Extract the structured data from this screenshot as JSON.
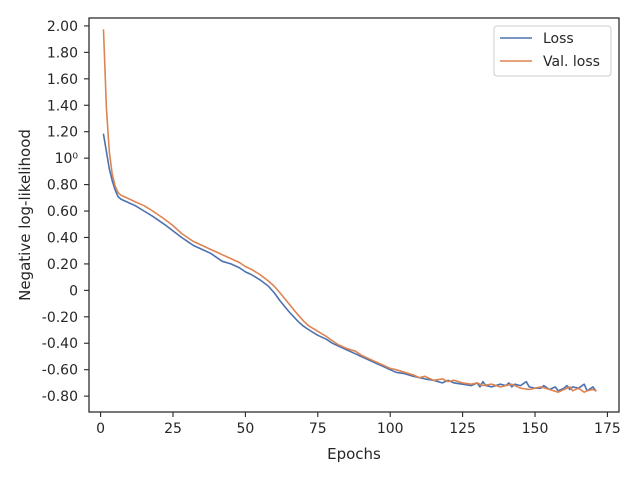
{
  "chart_data": {
    "type": "line",
    "xlabel": "Epochs",
    "ylabel": "Negative log-likelihood",
    "xlim": [
      -4,
      179
    ],
    "ylim": [
      -0.92,
      2.06
    ],
    "x_ticks": [
      0,
      25,
      50,
      75,
      100,
      125,
      150,
      175
    ],
    "x_tick_labels": [
      "0",
      "25",
      "50",
      "75",
      "100",
      "125",
      "150",
      "175"
    ],
    "y_ticks": [
      2.0,
      1.8,
      1.6,
      1.4,
      1.2,
      1.0,
      0.8,
      0.6,
      0.4,
      0.2,
      0.0,
      -0.2,
      -0.4,
      -0.6,
      -0.8
    ],
    "y_tick_labels": [
      "2.00",
      "1.80",
      "1.60",
      "1.40",
      "1.20",
      "10⁰",
      "0.80",
      "0.60",
      "0.40",
      "0.20",
      "0",
      "-0.20",
      "-0.40",
      "-0.60",
      "-0.80"
    ],
    "grid": false,
    "legend_position": "top-right",
    "series": [
      {
        "name": "Loss",
        "color": "#4c72b0",
        "x": [
          1,
          2,
          3,
          4,
          5,
          6,
          7,
          8,
          10,
          12,
          15,
          18,
          20,
          22,
          25,
          28,
          30,
          32,
          35,
          38,
          40,
          42,
          45,
          48,
          50,
          52,
          55,
          58,
          60,
          62,
          65,
          68,
          70,
          72,
          75,
          78,
          80,
          82,
          85,
          88,
          90,
          92,
          95,
          98,
          100,
          102,
          105,
          108,
          110,
          112,
          115,
          118,
          120,
          122,
          125,
          128,
          130,
          131,
          132,
          133,
          135,
          138,
          140,
          141,
          142,
          143,
          145,
          147,
          148,
          150,
          152,
          153,
          155,
          157,
          158,
          160,
          161,
          162,
          163,
          165,
          167,
          168,
          170,
          171
        ],
        "y": [
          1.18,
          1.05,
          0.92,
          0.83,
          0.76,
          0.71,
          0.69,
          0.68,
          0.66,
          0.64,
          0.6,
          0.56,
          0.53,
          0.5,
          0.45,
          0.4,
          0.37,
          0.34,
          0.31,
          0.28,
          0.25,
          0.22,
          0.2,
          0.17,
          0.14,
          0.12,
          0.08,
          0.03,
          -0.02,
          -0.08,
          -0.16,
          -0.23,
          -0.27,
          -0.3,
          -0.34,
          -0.37,
          -0.4,
          -0.42,
          -0.45,
          -0.48,
          -0.5,
          -0.52,
          -0.55,
          -0.58,
          -0.6,
          -0.62,
          -0.63,
          -0.65,
          -0.66,
          -0.67,
          -0.68,
          -0.7,
          -0.68,
          -0.7,
          -0.71,
          -0.72,
          -0.7,
          -0.73,
          -0.69,
          -0.72,
          -0.73,
          -0.71,
          -0.72,
          -0.7,
          -0.73,
          -0.71,
          -0.72,
          -0.69,
          -0.73,
          -0.74,
          -0.74,
          -0.72,
          -0.75,
          -0.73,
          -0.76,
          -0.74,
          -0.72,
          -0.75,
          -0.73,
          -0.74,
          -0.71,
          -0.76,
          -0.73,
          -0.76
        ]
      },
      {
        "name": "Val. loss",
        "color": "#dd8452",
        "x": [
          1,
          2,
          3,
          4,
          5,
          6,
          7,
          8,
          10,
          12,
          15,
          18,
          20,
          22,
          25,
          28,
          30,
          32,
          35,
          38,
          40,
          42,
          45,
          48,
          50,
          52,
          55,
          58,
          60,
          62,
          65,
          68,
          70,
          72,
          75,
          78,
          80,
          82,
          85,
          88,
          90,
          92,
          95,
          98,
          100,
          102,
          105,
          108,
          110,
          112,
          115,
          118,
          120,
          122,
          125,
          128,
          130,
          132,
          135,
          138,
          140,
          142,
          145,
          148,
          150,
          152,
          155,
          158,
          160,
          162,
          163,
          165,
          167,
          168,
          170,
          171
        ],
        "y": [
          1.97,
          1.38,
          1.05,
          0.88,
          0.79,
          0.74,
          0.72,
          0.71,
          0.69,
          0.67,
          0.64,
          0.6,
          0.57,
          0.54,
          0.49,
          0.43,
          0.4,
          0.37,
          0.34,
          0.31,
          0.29,
          0.27,
          0.24,
          0.21,
          0.18,
          0.16,
          0.12,
          0.07,
          0.03,
          -0.02,
          -0.1,
          -0.18,
          -0.23,
          -0.27,
          -0.31,
          -0.35,
          -0.38,
          -0.41,
          -0.44,
          -0.46,
          -0.49,
          -0.51,
          -0.54,
          -0.57,
          -0.59,
          -0.6,
          -0.62,
          -0.64,
          -0.66,
          -0.65,
          -0.68,
          -0.67,
          -0.69,
          -0.68,
          -0.7,
          -0.71,
          -0.7,
          -0.72,
          -0.71,
          -0.73,
          -0.72,
          -0.71,
          -0.74,
          -0.75,
          -0.74,
          -0.73,
          -0.75,
          -0.77,
          -0.75,
          -0.73,
          -0.76,
          -0.74,
          -0.77,
          -0.76,
          -0.75,
          -0.76
        ]
      }
    ]
  }
}
